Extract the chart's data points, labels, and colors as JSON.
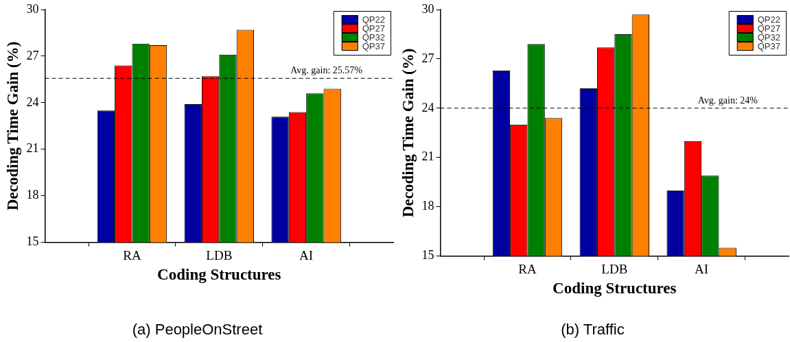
{
  "chart_data": [
    {
      "type": "bar",
      "xlabel": "Coding Structures",
      "ylabel": "Decoding Time Gain (%)",
      "categories": [
        "RA",
        "LDB",
        "AI"
      ],
      "series": [
        {
          "name": "QP22",
          "color": "#0000a0",
          "values": [
            23.5,
            23.9,
            23.1
          ]
        },
        {
          "name": "QP27",
          "color": "#ff0000",
          "values": [
            26.4,
            25.7,
            23.4
          ]
        },
        {
          "name": "QP32",
          "color": "#008000",
          "values": [
            27.8,
            27.1,
            24.6
          ]
        },
        {
          "name": "QP37",
          "color": "#ff8000",
          "values": [
            27.7,
            28.7,
            24.9
          ]
        }
      ],
      "ylim": [
        15,
        30
      ],
      "yticks": [
        15,
        18,
        21,
        24,
        27,
        30
      ],
      "legend": "top right",
      "ref_lines": [
        {
          "axis": "y",
          "value": 25.57,
          "label": "Avg. gain: 25.57%",
          "color": "#000000",
          "line_style": "dashed"
        }
      ],
      "annotations": [
        "(a) PeopleOnStreet"
      ]
    },
    {
      "type": "bar",
      "xlabel": "Coding Structures",
      "ylabel": "Decoding Time Gain (%)",
      "categories": [
        "RA",
        "LDB",
        "AI"
      ],
      "series": [
        {
          "name": "QP22",
          "color": "#0000a0",
          "values": [
            26.3,
            25.2,
            19.0
          ]
        },
        {
          "name": "QP27",
          "color": "#ff0000",
          "values": [
            23.0,
            27.7,
            22.0
          ]
        },
        {
          "name": "QP32",
          "color": "#008000",
          "values": [
            27.9,
            28.5,
            19.9
          ]
        },
        {
          "name": "QP37",
          "color": "#ff8000",
          "values": [
            23.4,
            29.7,
            15.5
          ]
        }
      ],
      "ylim": [
        15,
        30
      ],
      "yticks": [
        15,
        18,
        21,
        24,
        27,
        30
      ],
      "legend": "top right",
      "ref_lines": [
        {
          "axis": "y",
          "value": 24,
          "label": "Avg. gain: 24%",
          "color": "#000000",
          "line_style": "dashed"
        }
      ],
      "annotations": [
        "(b) Traffic"
      ]
    }
  ]
}
